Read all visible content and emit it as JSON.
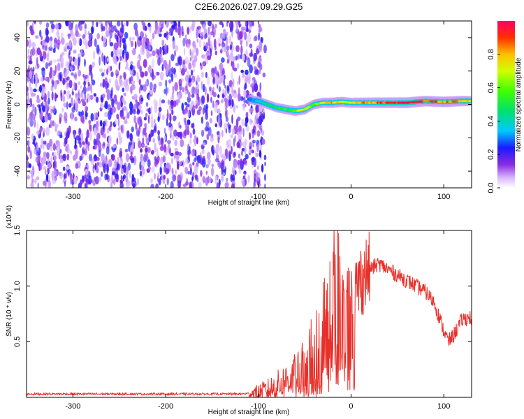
{
  "title": "C2E6.2026.027.09.29.G25",
  "chart_data": [
    {
      "type": "heatmap",
      "name": "spectrogram",
      "xlabel": "Height of straight line (km)",
      "ylabel": "Frequency (Hz)",
      "xlim": [
        -350,
        130
      ],
      "ylim": [
        -50,
        50
      ],
      "x_ticks": [
        -300,
        -200,
        -100,
        0,
        100
      ],
      "x_tick_labels": [
        "-300",
        "-200",
        "-100",
        "0",
        "100"
      ],
      "y_ticks": [
        -40,
        -20,
        0,
        20,
        40
      ],
      "y_tick_labels": [
        "-40",
        "-20",
        "0",
        "20",
        "40"
      ],
      "noise_region_x": [
        -350,
        -100
      ],
      "signal_track": {
        "x": [
          -110,
          -100,
          -90,
          -80,
          -70,
          -60,
          -50,
          -40,
          -30,
          -20,
          -10,
          0,
          20,
          40,
          60,
          80,
          100,
          120,
          130
        ],
        "freq": [
          3,
          2,
          0,
          -2,
          -3,
          -4,
          -3,
          0,
          1,
          1,
          1.5,
          1,
          1,
          1,
          1,
          2,
          1.5,
          2,
          2
        ],
        "amplitude": [
          0.3,
          0.35,
          0.45,
          0.5,
          0.55,
          0.6,
          0.75,
          0.6,
          0.7,
          0.8,
          0.75,
          0.7,
          0.85,
          0.95,
          1.0,
          0.9,
          0.9,
          0.8,
          0.75
        ]
      },
      "colorbar": {
        "label": "Normalized spectral amplitude",
        "range": [
          0,
          1
        ],
        "ticks": [
          0,
          0.2,
          0.4,
          0.6,
          0.8
        ],
        "tick_labels": [
          "0.0",
          "0.2",
          "0.4",
          "0.6",
          "0.8"
        ]
      }
    },
    {
      "type": "line",
      "name": "snr",
      "xlabel": "Height of straight line (km)",
      "ylabel": "SNR (10 * v/v)",
      "y_multiplier_label": "(x10^4)",
      "xlim": [
        -350,
        130
      ],
      "ylim": [
        0,
        1.5
      ],
      "x_ticks": [
        -300,
        -200,
        -100,
        0,
        100
      ],
      "x_tick_labels": [
        "-300",
        "-200",
        "-100",
        "0",
        "100"
      ],
      "y_ticks": [
        0.5,
        1.0,
        1.5
      ],
      "y_tick_labels": [
        "0.5",
        "1.0",
        "1.5"
      ],
      "color": "#e8302a",
      "series": [
        {
          "name": "SNR",
          "x": [
            -350,
            -300,
            -250,
            -200,
            -150,
            -120,
            -100,
            -90,
            -80,
            -70,
            -60,
            -50,
            -40,
            -30,
            -25,
            -20,
            -15,
            -10,
            -5,
            0,
            10,
            20,
            30,
            40,
            50,
            60,
            70,
            80,
            90,
            95,
            100,
            105,
            110,
            120,
            130
          ],
          "y": [
            0.03,
            0.03,
            0.03,
            0.03,
            0.03,
            0.03,
            0.04,
            0.06,
            0.1,
            0.15,
            0.2,
            0.25,
            0.35,
            0.6,
            0.8,
            0.95,
            1.1,
            0.95,
            0.9,
            0.85,
            1.05,
            1.15,
            1.2,
            1.15,
            1.1,
            1.05,
            1.0,
            0.95,
            0.85,
            0.72,
            0.6,
            0.5,
            0.55,
            0.7,
            0.72
          ]
        }
      ]
    }
  ]
}
